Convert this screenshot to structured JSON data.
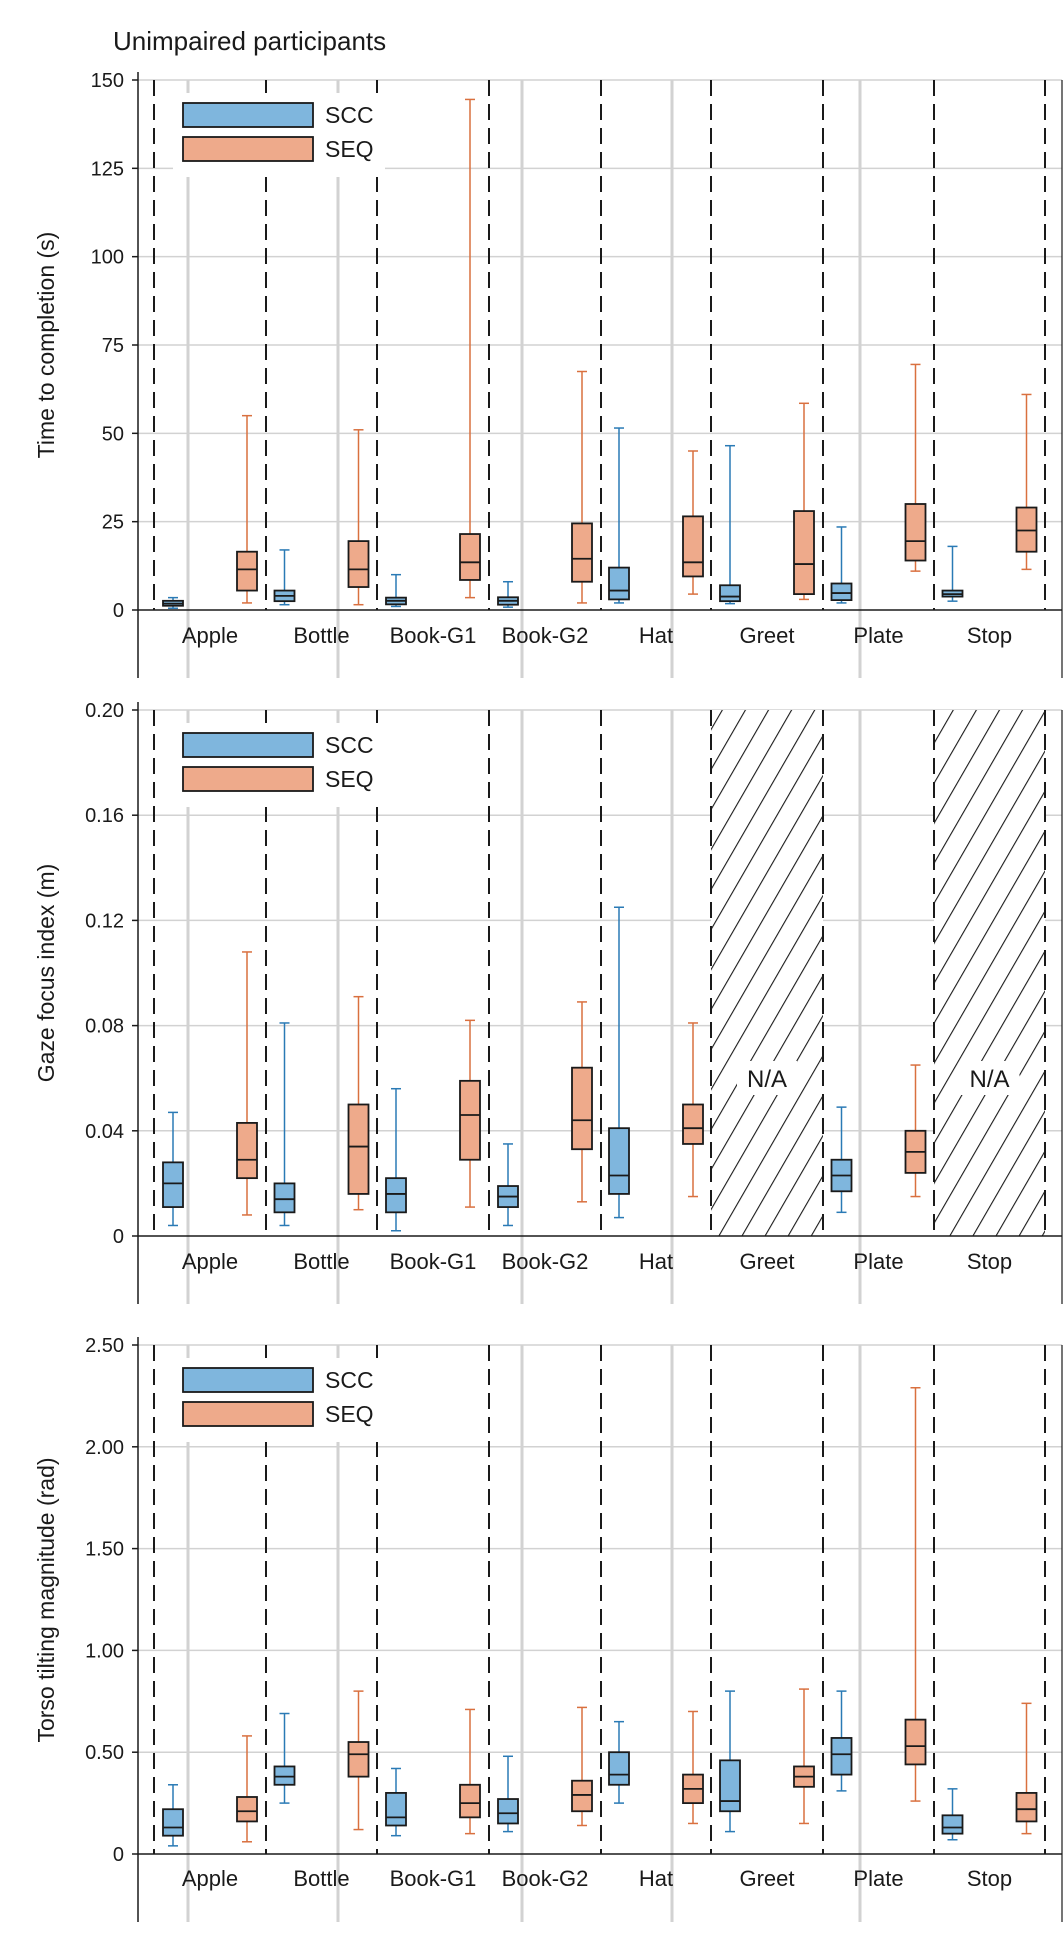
{
  "figure_title": "Unimpaired participants",
  "colors": {
    "scc_fill": "#7fb6dd",
    "scc_whisker": "#2a7ab5",
    "seq_fill": "#eeaa8b",
    "seq_whisker": "#d9703f",
    "box_edge": "#1a1a1a",
    "grid": "#d2d2d2"
  },
  "chart_data": [
    {
      "type": "box",
      "title": "",
      "ylabel": "Time to completion (s)",
      "ylim": [
        0,
        150
      ],
      "yticks": [
        0,
        25,
        50,
        75,
        100,
        125,
        150
      ],
      "ytick_labels": [
        "0",
        "25",
        "50",
        "75",
        "100",
        "125",
        "150"
      ],
      "legend": [
        "SCC",
        "SEQ"
      ],
      "legend_position": "top-left",
      "categories": [
        "Apple",
        "Bottle",
        "Book-G1",
        "Book-G2",
        "Hat",
        "Greet",
        "Plate",
        "Stop"
      ],
      "na_label": "",
      "series": [
        {
          "name": "SCC",
          "boxes": [
            {
              "min": 0.5,
              "q1": 1.2,
              "median": 1.8,
              "q3": 2.6,
              "max": 3.5
            },
            {
              "min": 1.5,
              "q1": 2.5,
              "median": 4.0,
              "q3": 5.5,
              "max": 17.0
            },
            {
              "min": 1.0,
              "q1": 1.6,
              "median": 2.6,
              "q3": 3.5,
              "max": 10.0
            },
            {
              "min": 0.8,
              "q1": 1.5,
              "median": 2.6,
              "q3": 3.6,
              "max": 8.0
            },
            {
              "min": 2.0,
              "q1": 3.0,
              "median": 5.5,
              "q3": 12.0,
              "max": 51.5
            },
            {
              "min": 1.8,
              "q1": 2.5,
              "median": 3.8,
              "q3": 7.0,
              "max": 46.5
            },
            {
              "min": 2.0,
              "q1": 2.8,
              "median": 4.8,
              "q3": 7.5,
              "max": 23.5
            },
            {
              "min": 2.5,
              "q1": 3.8,
              "median": 4.5,
              "q3": 5.5,
              "max": 18.0
            }
          ]
        },
        {
          "name": "SEQ",
          "boxes": [
            {
              "min": 2.0,
              "q1": 5.5,
              "median": 11.5,
              "q3": 16.5,
              "max": 55.0
            },
            {
              "min": 1.5,
              "q1": 6.5,
              "median": 11.5,
              "q3": 19.5,
              "max": 51.0
            },
            {
              "min": 3.5,
              "q1": 8.5,
              "median": 13.5,
              "q3": 21.5,
              "max": 144.5
            },
            {
              "min": 2.0,
              "q1": 8.0,
              "median": 14.5,
              "q3": 24.5,
              "max": 67.5
            },
            {
              "min": 4.5,
              "q1": 9.5,
              "median": 13.5,
              "q3": 26.5,
              "max": 45.0
            },
            {
              "min": 3.0,
              "q1": 4.5,
              "median": 13.0,
              "q3": 28.0,
              "max": 58.5
            },
            {
              "min": 11.0,
              "q1": 14.0,
              "median": 19.5,
              "q3": 30.0,
              "max": 69.5
            },
            {
              "min": 11.5,
              "q1": 16.5,
              "median": 22.5,
              "q3": 29.0,
              "max": 61.0
            }
          ]
        }
      ]
    },
    {
      "type": "box",
      "title": "",
      "ylabel": "Gaze focus index (m)",
      "ylim": [
        0,
        0.2
      ],
      "yticks": [
        0,
        0.04,
        0.08,
        0.12,
        0.16,
        0.2
      ],
      "ytick_labels": [
        "0",
        "0.04",
        "0.08",
        "0.12",
        "0.16",
        "0.20"
      ],
      "legend": [
        "SCC",
        "SEQ"
      ],
      "legend_position": "top-left",
      "categories": [
        "Apple",
        "Bottle",
        "Book-G1",
        "Book-G2",
        "Hat",
        "Greet",
        "Plate",
        "Stop"
      ],
      "na_label": "N/A",
      "series": [
        {
          "name": "SCC",
          "boxes": [
            {
              "min": 0.004,
              "q1": 0.011,
              "median": 0.02,
              "q3": 0.028,
              "max": 0.047
            },
            {
              "min": 0.004,
              "q1": 0.009,
              "median": 0.014,
              "q3": 0.02,
              "max": 0.081
            },
            {
              "min": 0.002,
              "q1": 0.009,
              "median": 0.016,
              "q3": 0.022,
              "max": 0.056
            },
            {
              "min": 0.004,
              "q1": 0.011,
              "median": 0.015,
              "q3": 0.019,
              "max": 0.035
            },
            {
              "min": 0.007,
              "q1": 0.016,
              "median": 0.023,
              "q3": 0.041,
              "max": 0.125
            },
            null,
            {
              "min": 0.009,
              "q1": 0.017,
              "median": 0.023,
              "q3": 0.029,
              "max": 0.049
            },
            null
          ]
        },
        {
          "name": "SEQ",
          "boxes": [
            {
              "min": 0.008,
              "q1": 0.022,
              "median": 0.029,
              "q3": 0.043,
              "max": 0.108
            },
            {
              "min": 0.01,
              "q1": 0.016,
              "median": 0.034,
              "q3": 0.05,
              "max": 0.091
            },
            {
              "min": 0.011,
              "q1": 0.029,
              "median": 0.046,
              "q3": 0.059,
              "max": 0.082
            },
            {
              "min": 0.013,
              "q1": 0.033,
              "median": 0.044,
              "q3": 0.064,
              "max": 0.089
            },
            {
              "min": 0.015,
              "q1": 0.035,
              "median": 0.041,
              "q3": 0.05,
              "max": 0.081
            },
            null,
            {
              "min": 0.015,
              "q1": 0.024,
              "median": 0.032,
              "q3": 0.04,
              "max": 0.065
            },
            null
          ]
        }
      ]
    },
    {
      "type": "box",
      "title": "",
      "ylabel": "Torso tilting magnitude (rad)",
      "ylim": [
        0,
        2.5
      ],
      "yticks": [
        0,
        0.5,
        1.0,
        1.5,
        2.0,
        2.5
      ],
      "ytick_labels": [
        "0",
        "0.50",
        "1.00",
        "1.50",
        "2.00",
        "2.50"
      ],
      "legend": [
        "SCC",
        "SEQ"
      ],
      "legend_position": "top-left",
      "categories": [
        "Apple",
        "Bottle",
        "Book-G1",
        "Book-G2",
        "Hat",
        "Greet",
        "Plate",
        "Stop"
      ],
      "na_label": "",
      "series": [
        {
          "name": "SCC",
          "boxes": [
            {
              "min": 0.04,
              "q1": 0.09,
              "median": 0.13,
              "q3": 0.22,
              "max": 0.34
            },
            {
              "min": 0.25,
              "q1": 0.34,
              "median": 0.38,
              "q3": 0.43,
              "max": 0.69
            },
            {
              "min": 0.09,
              "q1": 0.14,
              "median": 0.18,
              "q3": 0.3,
              "max": 0.42
            },
            {
              "min": 0.11,
              "q1": 0.15,
              "median": 0.2,
              "q3": 0.27,
              "max": 0.48
            },
            {
              "min": 0.25,
              "q1": 0.34,
              "median": 0.39,
              "q3": 0.5,
              "max": 0.65
            },
            {
              "min": 0.11,
              "q1": 0.21,
              "median": 0.26,
              "q3": 0.46,
              "max": 0.8
            },
            {
              "min": 0.31,
              "q1": 0.39,
              "median": 0.49,
              "q3": 0.57,
              "max": 0.8
            },
            {
              "min": 0.07,
              "q1": 0.1,
              "median": 0.13,
              "q3": 0.19,
              "max": 0.32
            }
          ]
        },
        {
          "name": "SEQ",
          "boxes": [
            {
              "min": 0.06,
              "q1": 0.16,
              "median": 0.21,
              "q3": 0.28,
              "max": 0.58
            },
            {
              "min": 0.12,
              "q1": 0.38,
              "median": 0.49,
              "q3": 0.55,
              "max": 0.8
            },
            {
              "min": 0.1,
              "q1": 0.18,
              "median": 0.25,
              "q3": 0.34,
              "max": 0.71
            },
            {
              "min": 0.14,
              "q1": 0.21,
              "median": 0.29,
              "q3": 0.36,
              "max": 0.72
            },
            {
              "min": 0.15,
              "q1": 0.25,
              "median": 0.32,
              "q3": 0.39,
              "max": 0.7
            },
            {
              "min": 0.15,
              "q1": 0.33,
              "median": 0.38,
              "q3": 0.43,
              "max": 0.81
            },
            {
              "min": 0.26,
              "q1": 0.44,
              "median": 0.53,
              "q3": 0.66,
              "max": 2.29
            },
            {
              "min": 0.1,
              "q1": 0.16,
              "median": 0.22,
              "q3": 0.3,
              "max": 0.74
            }
          ]
        }
      ]
    }
  ]
}
